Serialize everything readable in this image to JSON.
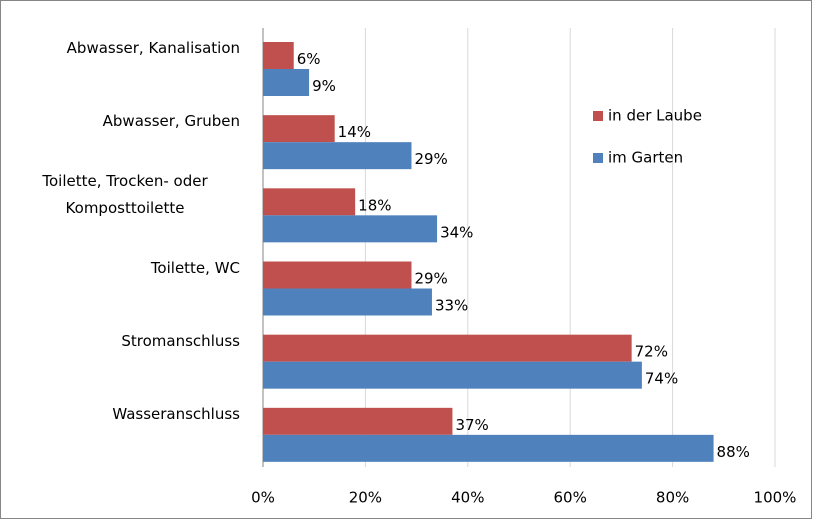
{
  "chart_data": {
    "type": "hbar",
    "categories": [
      "Abwasser, Kanalisation",
      "Abwasser, Gruben",
      "Toilette, Trocken- oder Komposttoilette",
      "Toilette, WC",
      "Stromanschluss",
      "Wasseranschluss"
    ],
    "series": [
      {
        "name": "in der Laube",
        "color": "#c0504d",
        "values": [
          6,
          14,
          18,
          29,
          72,
          37
        ],
        "value_labels": [
          "6%",
          "14%",
          "18%",
          "29%",
          "72%",
          "37%"
        ]
      },
      {
        "name": "im Garten",
        "color": "#4f81bd",
        "values": [
          9,
          29,
          34,
          33,
          74,
          88
        ],
        "value_labels": [
          "9%",
          "29%",
          "34%",
          "33%",
          "74%",
          "88%"
        ]
      }
    ],
    "xlim": [
      0,
      100
    ],
    "xticks": [
      {
        "value": 0,
        "label": "0%"
      },
      {
        "value": 20,
        "label": "20%"
      },
      {
        "value": 40,
        "label": "40%"
      },
      {
        "value": 60,
        "label": "60%"
      },
      {
        "value": 80,
        "label": "80%"
      },
      {
        "value": 100,
        "label": "100%"
      }
    ],
    "grid": true,
    "legend": "right"
  }
}
